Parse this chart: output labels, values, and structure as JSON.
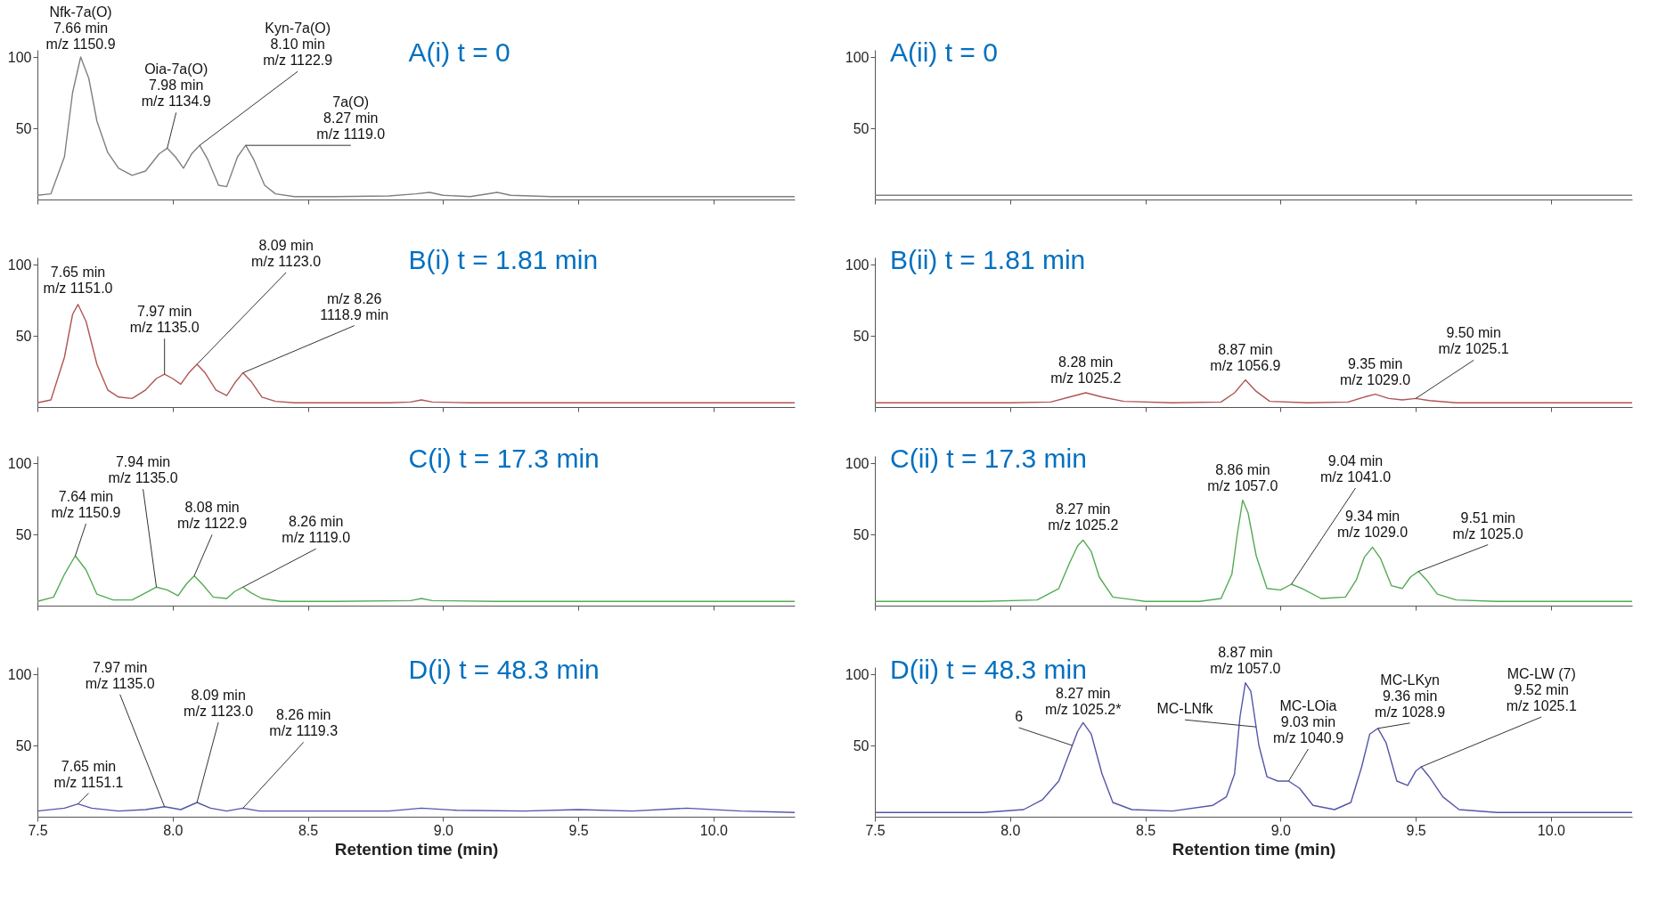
{
  "chart_data": [
    {
      "type": "line",
      "title": "A(i) t = 0",
      "xlim": [
        7.5,
        10.3
      ],
      "xticks": [
        7.5,
        8,
        8.5,
        9,
        9.5,
        10
      ],
      "ylim": [
        0,
        105
      ],
      "yticks": [
        50,
        100
      ],
      "tick_labels": "y",
      "x": [
        7.5,
        7.55,
        7.6,
        7.63,
        7.66,
        7.69,
        7.72,
        7.76,
        7.8,
        7.85,
        7.9,
        7.95,
        7.98,
        8.01,
        8.04,
        8.07,
        8.1,
        8.13,
        8.17,
        8.2,
        8.24,
        8.27,
        8.3,
        8.34,
        8.38,
        8.45,
        8.6,
        8.8,
        8.9,
        8.95,
        9.0,
        9.1,
        9.2,
        9.25,
        9.4,
        9.8,
        10.3
      ],
      "series": [
        {
          "color": "#808080",
          "values": [
            3,
            4,
            30,
            75,
            100,
            85,
            55,
            33,
            22,
            17,
            20,
            32,
            36,
            30,
            22,
            32,
            38,
            28,
            10,
            9,
            30,
            38,
            28,
            10,
            4,
            2,
            2,
            2.5,
            4,
            5,
            3,
            2,
            5,
            3,
            2,
            2,
            2
          ]
        }
      ],
      "annotations": [
        {
          "text": "Nfk-7a(O)\n7.66 min\nm/z 1150.9",
          "x": 7.66,
          "y": 100
        },
        {
          "text": "Oia-7a(O)\n7.98 min\nm/z 1134.9",
          "x": 7.98,
          "y": 36
        },
        {
          "text": "Kyn-7a(O)\n8.10 min\nm/z 1122.9",
          "x": 8.1,
          "y": 38
        },
        {
          "text": "7a(O)\n8.27 min\nm/z 1119.0",
          "x": 8.27,
          "y": 38
        }
      ]
    },
    {
      "type": "line",
      "title": "A(ii) t = 0",
      "xlim": [
        7.5,
        10.3
      ],
      "xticks": [
        7.5,
        8,
        8.5,
        9,
        9.5,
        10
      ],
      "ylim": [
        0,
        105
      ],
      "yticks": [
        50,
        100
      ],
      "tick_labels": "y",
      "x": [
        7.5,
        8.0,
        8.5,
        9.0,
        9.5,
        10.0,
        10.3
      ],
      "series": [
        {
          "color": "#808080",
          "values": [
            3,
            3,
            3,
            3,
            3,
            3,
            3
          ]
        }
      ]
    },
    {
      "type": "line",
      "title": "B(i) t = 1.81 min",
      "xlim": [
        7.5,
        10.3
      ],
      "xticks": [
        7.5,
        8,
        8.5,
        9,
        9.5,
        10
      ],
      "ylim": [
        0,
        105
      ],
      "yticks": [
        50,
        100
      ],
      "tick_labels": "y",
      "x": [
        7.5,
        7.55,
        7.6,
        7.63,
        7.65,
        7.68,
        7.72,
        7.76,
        7.8,
        7.85,
        7.9,
        7.94,
        7.97,
        8.0,
        8.03,
        8.06,
        8.09,
        8.12,
        8.16,
        8.2,
        8.23,
        8.26,
        8.29,
        8.33,
        8.38,
        8.45,
        8.6,
        8.8,
        8.88,
        8.92,
        8.96,
        9.1,
        9.5,
        10.0,
        10.3
      ],
      "series": [
        {
          "color": "#b05555",
          "values": [
            3,
            5,
            35,
            65,
            72,
            60,
            30,
            12,
            7,
            6,
            12,
            20,
            23,
            20,
            16,
            24,
            30,
            24,
            12,
            8,
            17,
            24,
            18,
            7,
            4,
            3,
            3,
            3,
            3.5,
            5,
            3.5,
            3,
            3,
            3,
            3
          ]
        }
      ],
      "annotations": [
        {
          "text": "7.65 min\nm/z 1151.0",
          "x": 7.65,
          "y": 72
        },
        {
          "text": "7.97 min\nm/z 1135.0",
          "x": 7.97,
          "y": 23
        },
        {
          "text": "8.09 min\nm/z 1123.0",
          "x": 8.09,
          "y": 30
        },
        {
          "text": "m/z 8.26\n1118.9 min",
          "x": 8.26,
          "y": 24
        }
      ]
    },
    {
      "type": "line",
      "title": "B(ii) t = 1.81 min",
      "xlim": [
        7.5,
        10.3
      ],
      "xticks": [
        7.5,
        8,
        8.5,
        9,
        9.5,
        10
      ],
      "ylim": [
        0,
        105
      ],
      "yticks": [
        50,
        100
      ],
      "tick_labels": "y",
      "x": [
        7.5,
        8.0,
        8.15,
        8.22,
        8.28,
        8.34,
        8.42,
        8.6,
        8.78,
        8.83,
        8.87,
        8.91,
        8.96,
        9.1,
        9.25,
        9.31,
        9.35,
        9.4,
        9.45,
        9.5,
        9.55,
        9.65,
        10.0,
        10.3
      ],
      "series": [
        {
          "color": "#b05555",
          "values": [
            3,
            3,
            3.5,
            7,
            10,
            7,
            4,
            3,
            3.5,
            10,
            19,
            11,
            4,
            3,
            3.5,
            7,
            9,
            6,
            5,
            6,
            4.5,
            3,
            3,
            3
          ]
        }
      ],
      "annotations": [
        {
          "text": "8.28 min\nm/z 1025.2",
          "x": 8.28,
          "y": 10
        },
        {
          "text": "8.87 min\nm/z 1056.9",
          "x": 8.87,
          "y": 19
        },
        {
          "text": "9.35 min\nm/z 1029.0",
          "x": 9.35,
          "y": 9
        },
        {
          "text": "9.50 min\nm/z 1025.1",
          "x": 9.5,
          "y": 6
        }
      ]
    },
    {
      "type": "line",
      "title": "C(i) t = 17.3 min",
      "xlim": [
        7.5,
        10.3
      ],
      "xticks": [
        7.5,
        8,
        8.5,
        9,
        9.5,
        10
      ],
      "ylim": [
        0,
        105
      ],
      "yticks": [
        50,
        100
      ],
      "tick_labels": "y",
      "x": [
        7.5,
        7.56,
        7.6,
        7.64,
        7.68,
        7.72,
        7.78,
        7.85,
        7.9,
        7.94,
        7.98,
        8.02,
        8.05,
        8.08,
        8.11,
        8.15,
        8.2,
        8.23,
        8.26,
        8.29,
        8.33,
        8.4,
        8.6,
        8.88,
        8.92,
        8.96,
        9.2,
        9.6,
        10.0,
        10.3
      ],
      "series": [
        {
          "color": "#55aa55",
          "values": [
            3,
            6,
            22,
            35,
            25,
            8,
            4,
            4,
            9,
            13,
            11,
            7,
            15,
            21,
            15,
            6,
            5,
            10,
            13,
            9,
            5,
            3,
            3,
            3.5,
            5,
            3.5,
            3,
            3,
            3,
            3
          ]
        }
      ],
      "annotations": [
        {
          "text": "7.64 min\nm/z 1150.9",
          "x": 7.64,
          "y": 35
        },
        {
          "text": "7.94 min\nm/z 1135.0",
          "x": 7.94,
          "y": 13
        },
        {
          "text": "8.08 min\nm/z 1122.9",
          "x": 8.08,
          "y": 21
        },
        {
          "text": "8.26 min\nm/z 1119.0",
          "x": 8.26,
          "y": 13
        }
      ]
    },
    {
      "type": "line",
      "title": "C(ii) t = 17.3 min",
      "xlim": [
        7.5,
        10.3
      ],
      "xticks": [
        7.5,
        8,
        8.5,
        9,
        9.5,
        10
      ],
      "ylim": [
        0,
        105
      ],
      "yticks": [
        50,
        100
      ],
      "tick_labels": "y",
      "x": [
        7.5,
        7.9,
        8.1,
        8.18,
        8.22,
        8.25,
        8.27,
        8.3,
        8.33,
        8.38,
        8.5,
        8.7,
        8.78,
        8.82,
        8.84,
        8.86,
        8.88,
        8.91,
        8.95,
        9.0,
        9.04,
        9.08,
        9.15,
        9.24,
        9.28,
        9.31,
        9.34,
        9.37,
        9.41,
        9.45,
        9.48,
        9.51,
        9.54,
        9.58,
        9.65,
        9.8,
        10.3
      ],
      "series": [
        {
          "color": "#55aa55",
          "values": [
            3,
            3,
            4,
            12,
            30,
            42,
            46,
            38,
            20,
            6,
            3,
            3,
            5,
            22,
            50,
            74,
            65,
            35,
            12,
            11,
            15,
            12,
            5,
            6,
            18,
            34,
            41,
            33,
            14,
            12,
            20,
            24,
            18,
            8,
            4,
            3,
            3
          ]
        }
      ],
      "annotations": [
        {
          "text": "8.27 min\nm/z 1025.2",
          "x": 8.27,
          "y": 46
        },
        {
          "text": "8.86 min\nm/z 1057.0",
          "x": 8.86,
          "y": 74
        },
        {
          "text": "9.04 min\nm/z 1041.0",
          "x": 9.04,
          "y": 15
        },
        {
          "text": "9.34 min\nm/z 1029.0",
          "x": 9.34,
          "y": 41
        },
        {
          "text": "9.51 min\nm/z 1025.0",
          "x": 9.51,
          "y": 24
        }
      ]
    },
    {
      "type": "line",
      "title": "D(i) t = 48.3 min",
      "xlabel": "Retention time (min)",
      "xlim": [
        7.5,
        10.3
      ],
      "xticks": [
        7.5,
        {
          "value": 8,
          "label": "8.0"
        },
        8.5,
        {
          "value": 9,
          "label": "9.0"
        },
        9.5,
        {
          "value": 10,
          "label": "10.0"
        }
      ],
      "ylim": [
        0,
        105
      ],
      "yticks": [
        50,
        100
      ],
      "x": [
        7.5,
        7.6,
        7.65,
        7.7,
        7.8,
        7.9,
        7.97,
        8.03,
        8.09,
        8.14,
        8.2,
        8.26,
        8.32,
        8.5,
        8.8,
        8.92,
        9.05,
        9.3,
        9.5,
        9.7,
        9.9,
        10.1,
        10.3
      ],
      "series": [
        {
          "color": "#5555aa",
          "values": [
            4,
            6,
            9,
            6,
            4,
            5,
            7,
            5,
            10,
            6,
            4,
            6,
            4,
            4,
            4,
            6,
            4.5,
            4,
            5,
            4,
            6,
            4,
            3
          ]
        }
      ],
      "annotations": [
        {
          "text": "7.65 min\nm/z 1151.1",
          "x": 7.65,
          "y": 9
        },
        {
          "text": "7.97 min\nm/z 1135.0",
          "x": 7.97,
          "y": 7
        },
        {
          "text": "8.09 min\nm/z 1123.0",
          "x": 8.09,
          "y": 10
        },
        {
          "text": "8.26 min\nm/z 1119.3",
          "x": 8.26,
          "y": 6
        }
      ]
    },
    {
      "type": "line",
      "title": "D(ii) t = 48.3 min",
      "xlabel": "Retention time (min)",
      "xlim": [
        7.5,
        10.3
      ],
      "xticks": [
        7.5,
        {
          "value": 8,
          "label": "8.0"
        },
        8.5,
        {
          "value": 9,
          "label": "9.0"
        },
        9.5,
        {
          "value": 10,
          "label": "10.0"
        }
      ],
      "ylim": [
        0,
        105
      ],
      "yticks": [
        50,
        100
      ],
      "x": [
        7.5,
        7.9,
        8.05,
        8.12,
        8.18,
        8.22,
        8.25,
        8.27,
        8.3,
        8.34,
        8.38,
        8.45,
        8.6,
        8.75,
        8.8,
        8.83,
        8.85,
        8.87,
        8.89,
        8.92,
        8.95,
        8.99,
        9.03,
        9.07,
        9.12,
        9.2,
        9.26,
        9.3,
        9.33,
        9.36,
        9.39,
        9.43,
        9.47,
        9.5,
        9.52,
        9.55,
        9.6,
        9.66,
        9.8,
        10.3
      ],
      "series": [
        {
          "color": "#5555aa",
          "values": [
            3,
            3,
            5,
            12,
            25,
            45,
            60,
            66,
            58,
            30,
            10,
            5,
            4,
            8,
            14,
            30,
            70,
            94,
            88,
            50,
            28,
            25,
            25,
            20,
            8,
            5,
            10,
            35,
            58,
            62,
            52,
            25,
            22,
            32,
            35,
            28,
            14,
            5,
            3,
            3
          ]
        }
      ],
      "annotations": [
        {
          "text": "8.27 min\nm/z 1025.2*",
          "x": 8.27,
          "y": 66
        },
        {
          "text": "6",
          "x": 8.23,
          "y": 50
        },
        {
          "text": "8.87 min\nm/z 1057.0",
          "x": 8.87,
          "y": 94
        },
        {
          "text": "MC-LNfk",
          "x": 8.91,
          "y": 63
        },
        {
          "text": "MC-LOia\n9.03 min\nm/z 1040.9",
          "x": 9.03,
          "y": 25
        },
        {
          "text": "MC-LKyn\n9.36 min\nm/z 1028.9",
          "x": 9.36,
          "y": 62
        },
        {
          "text": "MC-LW (7)\n9.52 min\nm/z 1025.1",
          "x": 9.52,
          "y": 35
        }
      ]
    }
  ]
}
